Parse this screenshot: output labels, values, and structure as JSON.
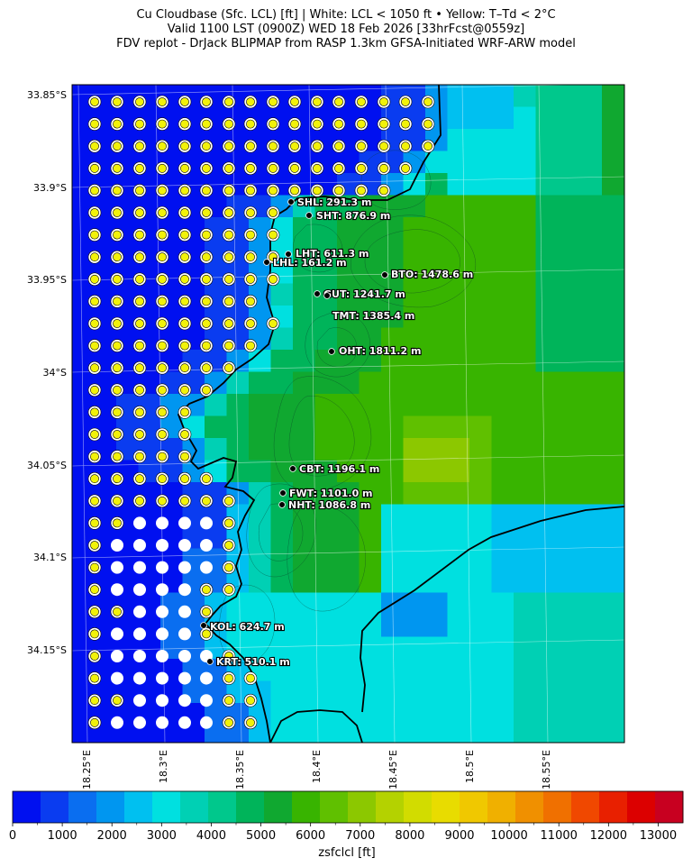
{
  "header": {
    "line1": "Cu Cloudbase (Sfc. LCL) [ft]  |  White: LCL < 1050 ft • Yellow: T–Td < 2°C",
    "line2": "Valid 1100 LST (0900Z) WED 18 Feb 2026 [33hrFcst@0559z]",
    "line3": "FDV replot - DrJack BLIPMAP from RASP 1.3km GFSA-Initiated WRF-ARW model"
  },
  "axes": {
    "lat_labels": [
      "33.85°S",
      "33.9°S",
      "33.95°S",
      "34°S",
      "34.05°S",
      "34.1°S",
      "34.15°S"
    ],
    "lon_labels": [
      "18.25°E",
      "18.3°E",
      "18.35°E",
      "18.4°E",
      "18.45°E",
      "18.5°E",
      "18.55°E"
    ]
  },
  "colorbar": {
    "label": "zsfclcl [ft]",
    "ticks": [
      "0",
      "1000",
      "2000",
      "3000",
      "4000",
      "5000",
      "6000",
      "7000",
      "8000",
      "9000",
      "10000",
      "11000",
      "12000",
      "13000"
    ],
    "colors": [
      "#0010f0",
      "#0a3cf0",
      "#0a6ef0",
      "#0096f0",
      "#00c0f0",
      "#00e0e0",
      "#00d0b4",
      "#00c88c",
      "#00b45a",
      "#10a830",
      "#38b400",
      "#60c000",
      "#8cc800",
      "#b4d200",
      "#d2dc00",
      "#e8dc00",
      "#f0c800",
      "#f0b000",
      "#f09000",
      "#f07000",
      "#f04800",
      "#e82000",
      "#dc0000",
      "#c80020"
    ]
  },
  "stations": [
    {
      "label": "SHL: 291.3 m"
    },
    {
      "label": "SHT: 876.9 m"
    },
    {
      "label": "LHT: 611.3 m"
    },
    {
      "label": "LHL: 161.2 m"
    },
    {
      "label": "BTO: 1478.6 m"
    },
    {
      "label": "GUT: 1241.7 m"
    },
    {
      "label": "TMT: 1385.4 m"
    },
    {
      "label": "OHT: 1811.2 m"
    },
    {
      "label": "CBT: 1196.1 m"
    },
    {
      "label": "FWT: 1101.0 m"
    },
    {
      "label": "NHT: 1086.8 m"
    },
    {
      "label": "KOL: 624.7 m"
    },
    {
      "label": "KRT: 510.1 m"
    }
  ]
}
